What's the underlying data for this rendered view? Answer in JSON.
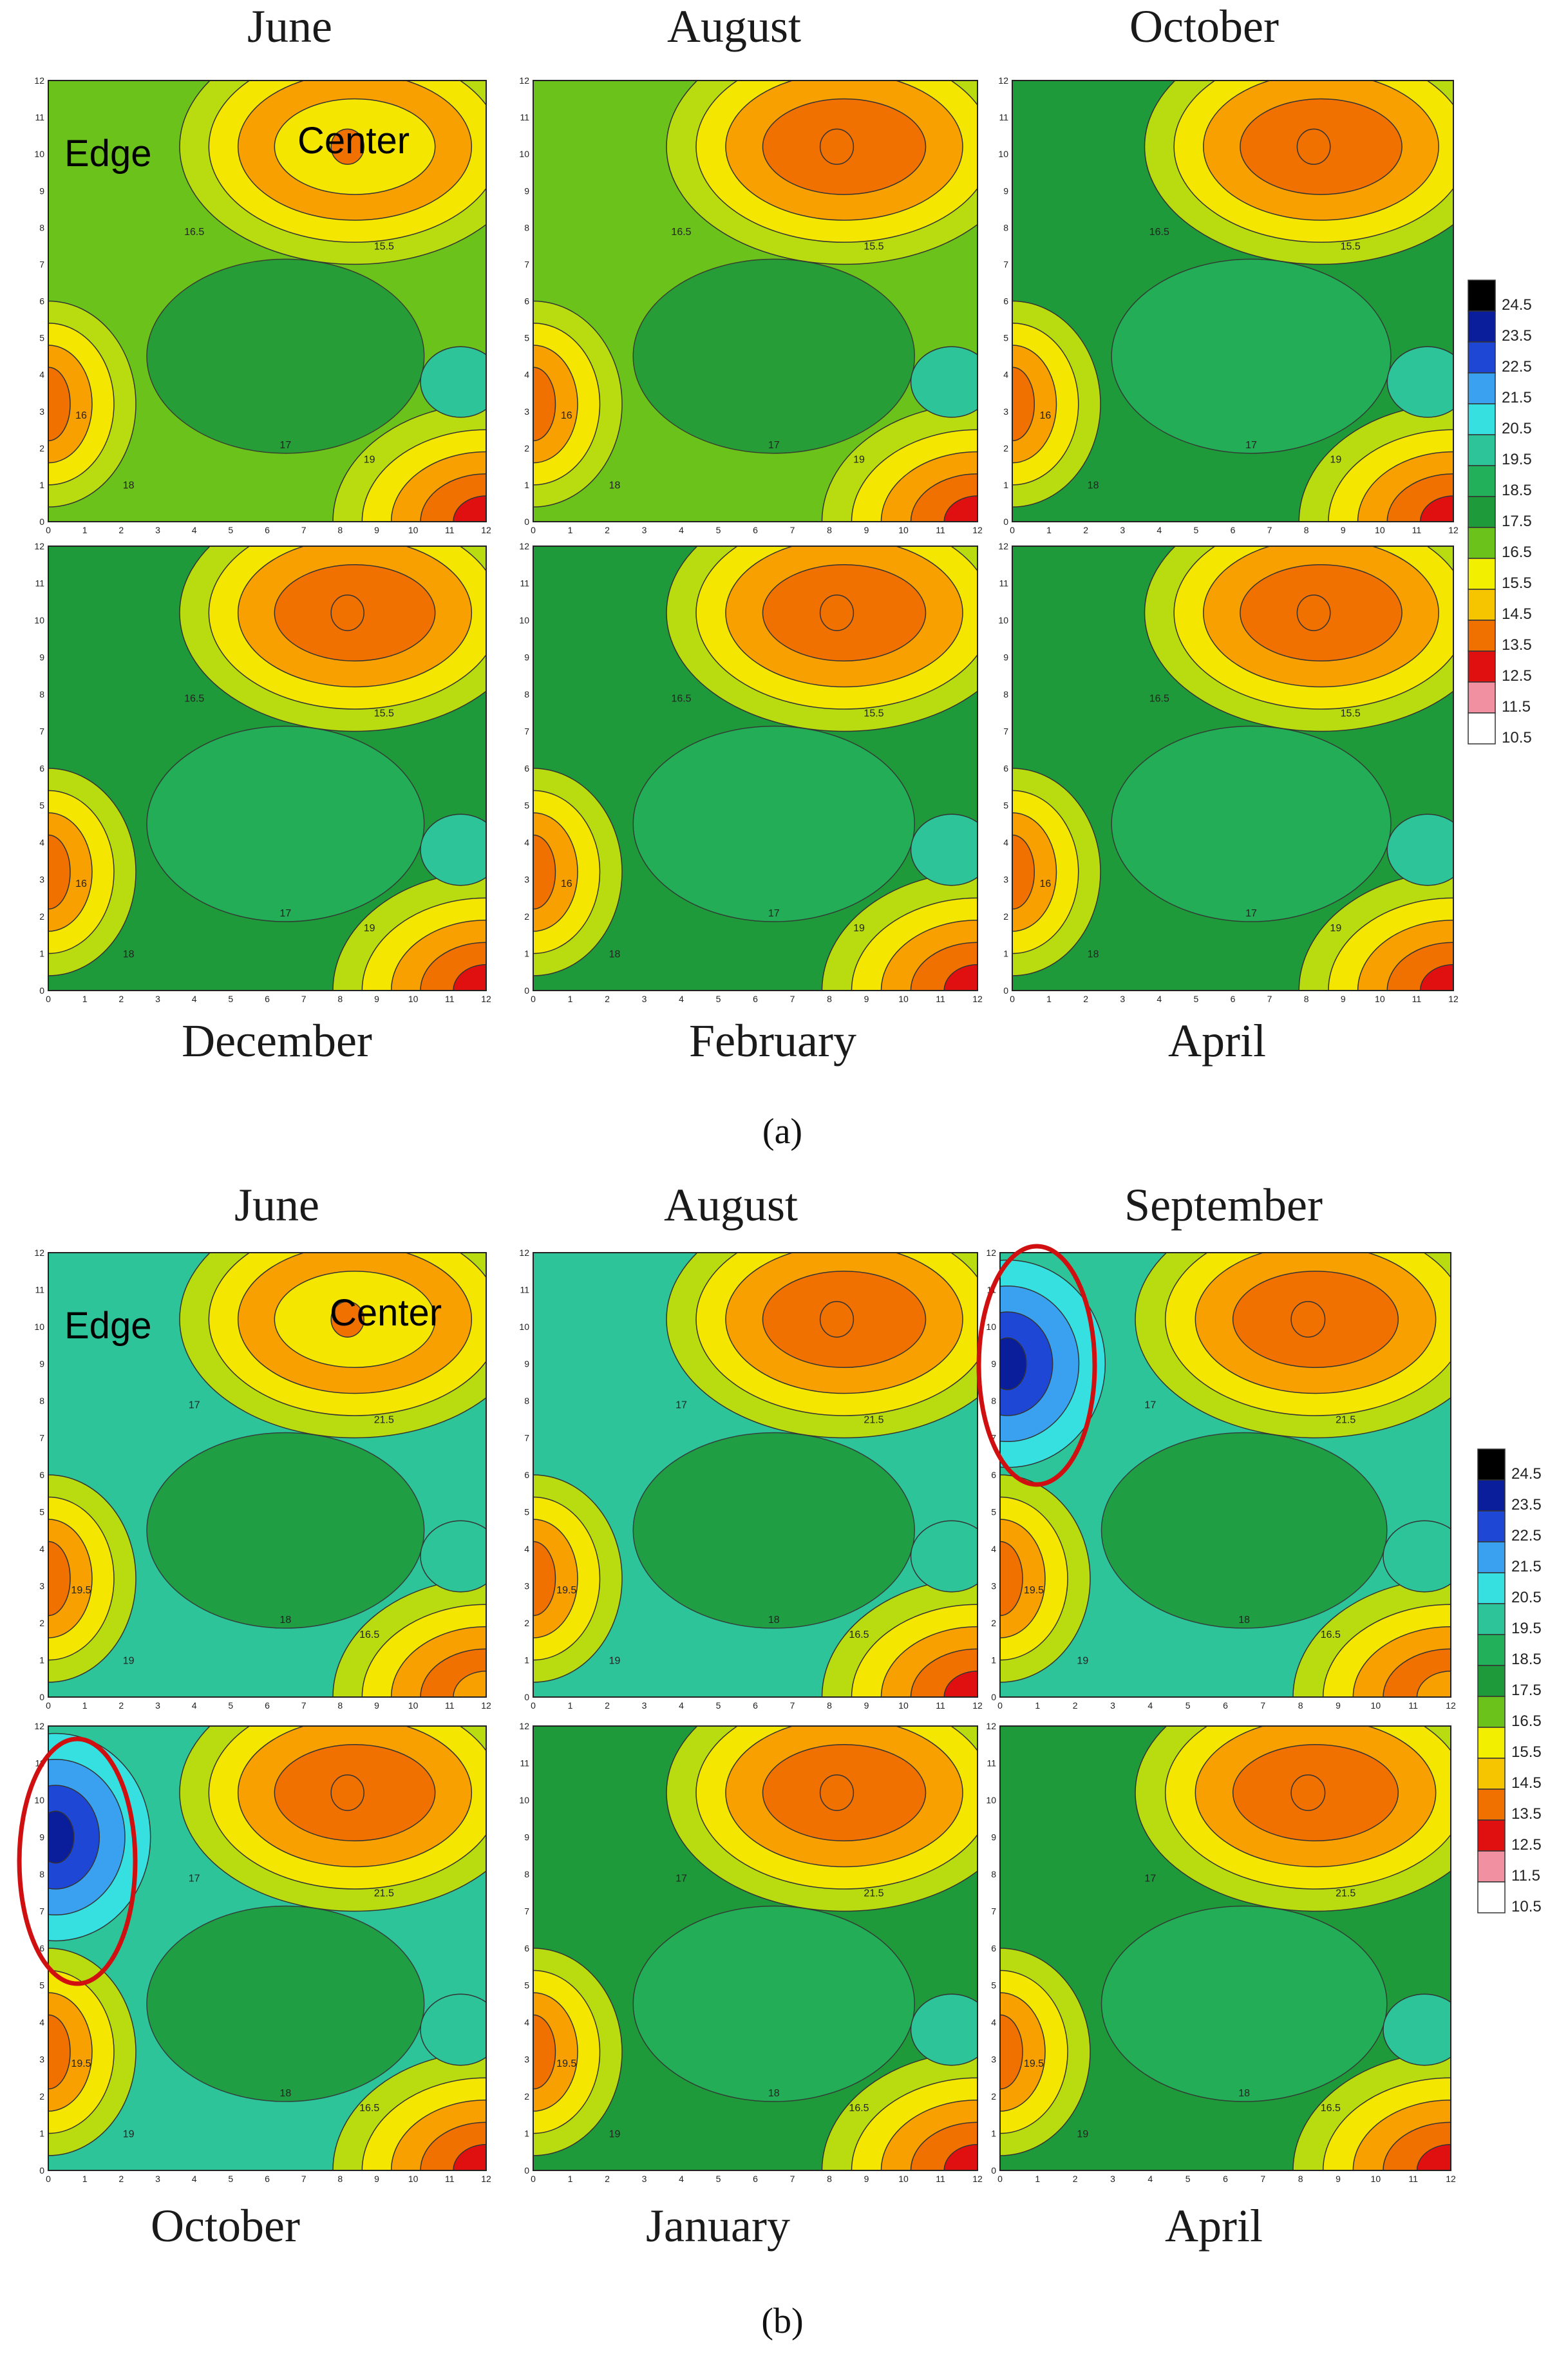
{
  "chart_data": [
    {
      "type": "contour",
      "panel": "a",
      "caption": "(a)",
      "months_top": [
        "June",
        "August",
        "October"
      ],
      "months_bottom": [
        "December",
        "February",
        "April"
      ],
      "annotations": {
        "edge_label": "Edge",
        "center_label": "Center"
      },
      "x_ticks": [
        0,
        1,
        2,
        3,
        4,
        5,
        6,
        7,
        8,
        9,
        10,
        11,
        12
      ],
      "y_ticks": [
        0,
        1,
        2,
        3,
        4,
        5,
        6,
        7,
        8,
        9,
        10,
        11,
        12
      ],
      "xlim": [
        0,
        12
      ],
      "ylim": [
        0,
        12
      ],
      "legend": {
        "levels": [
          "24.5",
          "23.5",
          "22.5",
          "21.5",
          "20.5",
          "19.5",
          "18.5",
          "17.5",
          "16.5",
          "15.5",
          "14.5",
          "13.5",
          "12.5",
          "11.5",
          "10.5"
        ],
        "colors": [
          "#000000",
          "#0a1d9a",
          "#1f47d6",
          "#3aa0f0",
          "#37e0e0",
          "#2ec49a",
          "#23b05a",
          "#1f9a3a",
          "#6bc21a",
          "#f2ef00",
          "#f7c400",
          "#f07000",
          "#e01010",
          "#f090a0",
          "#ffffff"
        ]
      },
      "contour_labels": [
        "16",
        "15.5",
        "16.5",
        "17",
        "18",
        "19"
      ]
    },
    {
      "type": "contour",
      "panel": "b",
      "caption": "(b)",
      "months_top": [
        "June",
        "August",
        "September"
      ],
      "months_bottom": [
        "October",
        "January",
        "April"
      ],
      "annotations": {
        "edge_label": "Edge",
        "center_label": "Center"
      },
      "x_ticks": [
        0,
        1,
        2,
        3,
        4,
        5,
        6,
        7,
        8,
        9,
        10,
        11,
        12
      ],
      "y_ticks": [
        0,
        1,
        2,
        3,
        4,
        5,
        6,
        7,
        8,
        9,
        10,
        11,
        12
      ],
      "xlim": [
        0,
        12
      ],
      "ylim": [
        0,
        12
      ],
      "legend": {
        "levels": [
          "24.5",
          "23.5",
          "22.5",
          "21.5",
          "20.5",
          "19.5",
          "18.5",
          "17.5",
          "16.5",
          "15.5",
          "14.5",
          "13.5",
          "12.5",
          "11.5",
          "10.5"
        ],
        "colors": [
          "#000000",
          "#0a1d9a",
          "#1f47d6",
          "#3aa0f0",
          "#37e0e0",
          "#2ec49a",
          "#23b05a",
          "#1f9a3a",
          "#6bc21a",
          "#f2ef00",
          "#f7c400",
          "#f07000",
          "#e01010",
          "#f090a0",
          "#ffffff"
        ]
      },
      "contour_labels": [
        "19.5",
        "21.5",
        "17",
        "18",
        "19",
        "16.5"
      ]
    }
  ]
}
